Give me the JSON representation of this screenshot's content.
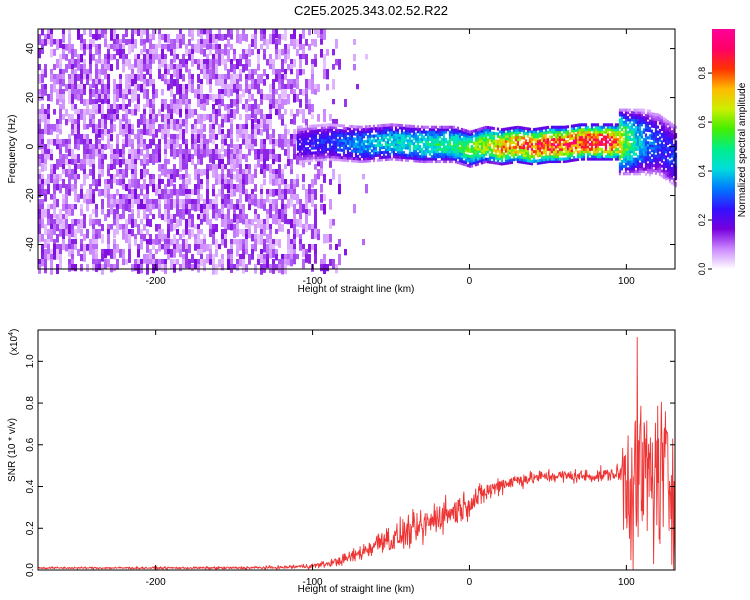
{
  "title": "C2E5.2025.343.02.52.R22",
  "colors": {
    "signal": "#ee3333",
    "axis": "#000000"
  },
  "chart_data": [
    {
      "type": "heatmap",
      "xlabel": "Height of straight line (km)",
      "ylabel": "Frequency (Hz)",
      "xlim": [
        -275,
        131
      ],
      "ylim": [
        -50,
        48
      ],
      "xticks": [
        "-200",
        "-100",
        "0",
        "100"
      ],
      "yticks": [
        "40",
        "20",
        "0",
        "-20",
        "-40"
      ],
      "colorbar": {
        "label": "Normalized spectral amplitude",
        "range": [
          0.0,
          0.98
        ],
        "ticks": [
          "0.0",
          "0.2",
          "0.4",
          "0.6",
          "0.8"
        ],
        "colormap": [
          "#ffffff",
          "#cc88ff",
          "#7700dd",
          "#3311ff",
          "#0077ff",
          "#00dddd",
          "#00ee88",
          "#44ee00",
          "#ccee00",
          "#ffbb00",
          "#ff3300",
          "#ff0066",
          "#ff0099"
        ]
      },
      "regions": [
        {
          "name": "noise",
          "x_range": [
            -275,
            -80
          ],
          "amplitude": 0.08
        },
        {
          "name": "signal",
          "x_range": [
            -110,
            131
          ],
          "center_freq_hz": 0,
          "bandwidth_hz": 8
        }
      ],
      "signal_track": {
        "x": [
          -110,
          -90,
          -70,
          -50,
          -30,
          -10,
          0,
          10,
          20,
          30,
          40,
          50,
          60,
          70,
          80,
          90,
          100,
          110,
          120,
          131
        ],
        "freq": [
          1,
          2,
          1,
          2,
          1,
          1,
          -1,
          1,
          0,
          1,
          0,
          1,
          1,
          2,
          2,
          2,
          2,
          2,
          1,
          -4
        ],
        "peak_amplitude": [
          0.25,
          0.3,
          0.4,
          0.45,
          0.5,
          0.55,
          0.6,
          0.7,
          0.8,
          0.85,
          0.9,
          0.95,
          0.92,
          0.95,
          0.95,
          0.95,
          0.6,
          0.4,
          0.3,
          0.3
        ]
      }
    },
    {
      "type": "line",
      "xlabel": "Height of straight line (km)",
      "ylabel": "SNR (10 * v/v)",
      "exponent": "(x10",
      "exponent_power": "4",
      "exponent_close": ")",
      "xlim": [
        -275,
        131
      ],
      "ylim": [
        0,
        1.15
      ],
      "xticks": [
        "-200",
        "-100",
        "0",
        "100"
      ],
      "yticks": [
        "0.0",
        "0.2",
        "0.4",
        "0.6",
        "0.8",
        "1.0"
      ],
      "series": [
        {
          "x": [
            -275,
            -250,
            -200,
            -150,
            -120,
            -100,
            -90,
            -80,
            -70,
            -60,
            -55,
            -50,
            -40,
            -30,
            -20,
            -10,
            0,
            10,
            20,
            30,
            40,
            50,
            60,
            70,
            80,
            90,
            95,
            100,
            105,
            110,
            115,
            120,
            125,
            131
          ],
          "y": [
            0.01,
            0.01,
            0.01,
            0.01,
            0.012,
            0.02,
            0.03,
            0.05,
            0.08,
            0.12,
            0.16,
            0.14,
            0.18,
            0.2,
            0.26,
            0.28,
            0.32,
            0.37,
            0.41,
            0.43,
            0.44,
            0.45,
            0.45,
            0.45,
            0.45,
            0.46,
            0.46,
            0.45,
            0.45,
            0.45,
            0.45,
            0.45,
            0.45,
            0.4
          ],
          "noise": [
            0.005,
            0.005,
            0.005,
            0.006,
            0.008,
            0.012,
            0.015,
            0.025,
            0.035,
            0.05,
            0.07,
            0.06,
            0.07,
            0.08,
            0.08,
            0.07,
            0.06,
            0.05,
            0.04,
            0.035,
            0.03,
            0.03,
            0.03,
            0.03,
            0.03,
            0.03,
            0.04,
            0.35,
            0.45,
            0.4,
            0.35,
            0.38,
            0.4,
            0.4
          ],
          "max": 1.15
        }
      ]
    }
  ]
}
